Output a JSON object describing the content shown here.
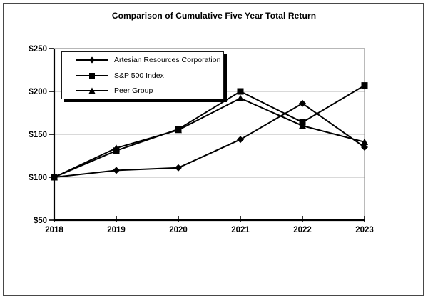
{
  "window": {
    "background": "#ffffff",
    "border_color": "#474747"
  },
  "chart_data": {
    "type": "line",
    "title": "Comparison of Cumulative Five Year Total Return",
    "x_labels": [
      "2018",
      "2019",
      "2020",
      "2021",
      "2022",
      "2023"
    ],
    "y_tick_labels": [
      "$50",
      "$100",
      "$150",
      "$200",
      "$250"
    ],
    "y_tick_values": [
      50,
      100,
      150,
      200,
      250
    ],
    "ylim": [
      50,
      250
    ],
    "grid": true,
    "legend_position": "top-left",
    "gridline_color": "#b3b3b3",
    "plot_border_color": "#8c8c8c",
    "axis_color": "#000000",
    "series": [
      {
        "name": "Artesian Resources Corporation",
        "marker": "diamond",
        "color": "#000000",
        "values": [
          100,
          108,
          111,
          144,
          186,
          135
        ]
      },
      {
        "name": "S&P 500 Index",
        "marker": "square",
        "color": "#000000",
        "values": [
          100,
          131,
          156,
          200,
          164,
          207
        ]
      },
      {
        "name": "Peer Group",
        "marker": "triangle",
        "color": "#000000",
        "values": [
          100,
          134,
          155,
          192,
          160,
          141
        ]
      }
    ]
  }
}
